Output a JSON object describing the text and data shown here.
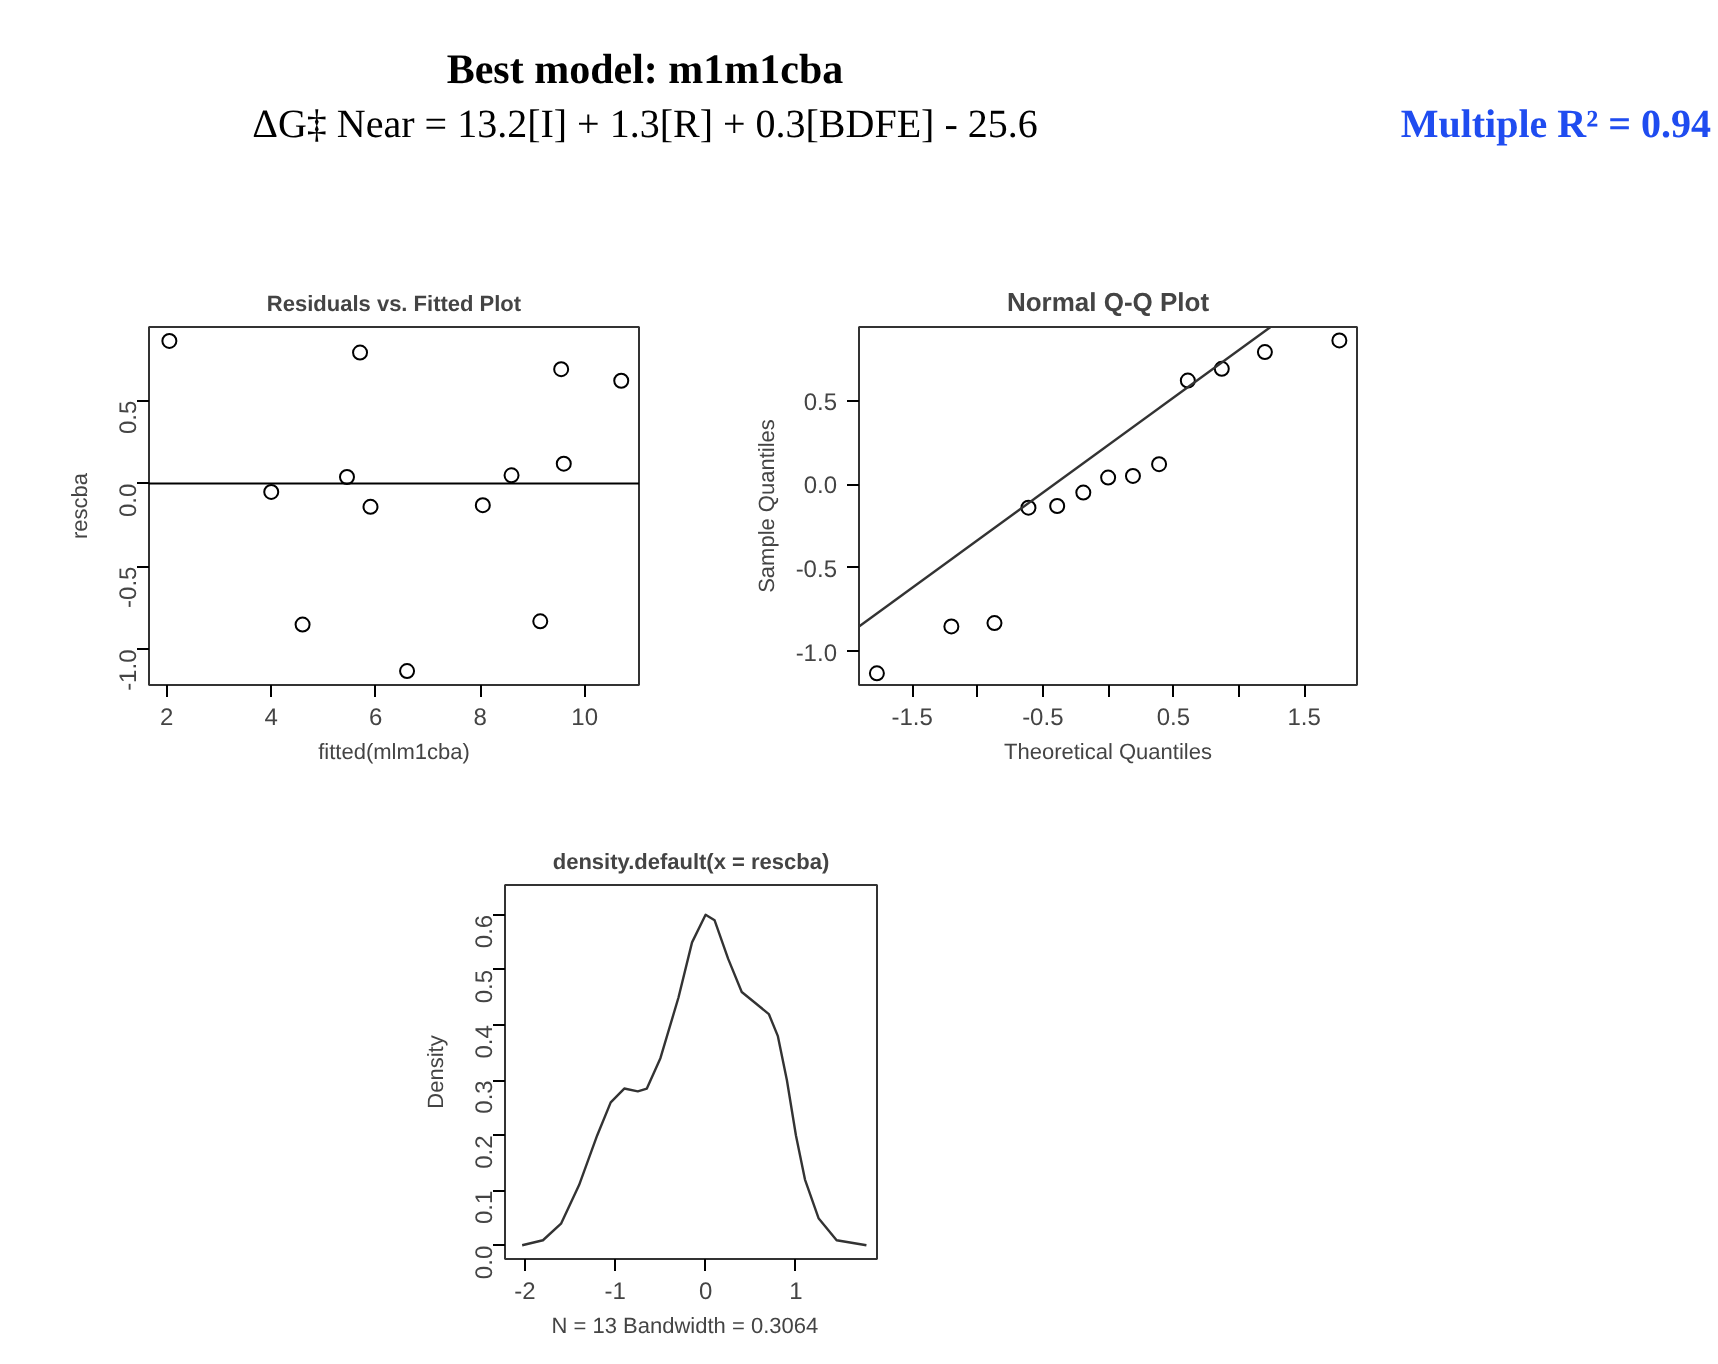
{
  "chart_data": [
    {
      "type": "other",
      "title": "Best model: m1m1cba",
      "subtitle": "ΔG‡ Near = 13.2[I] + 1.3[R] + 0.3[BDFE] - 25.6",
      "annotations": [
        "Multiple R² = 0.94"
      ]
    },
    {
      "type": "scatter",
      "title": "Residuals vs. Fitted Plot",
      "xlabel": "fitted(mlm1cba)",
      "ylabel": "rescba",
      "marker": "circle",
      "grid": false,
      "xlim": [
        1.66,
        11.04
      ],
      "ylim": [
        -1.214,
        0.944
      ],
      "xticks": [
        2,
        4,
        6,
        8,
        10
      ],
      "yticks": [
        {
          "value": -1,
          "label": "-1.0"
        },
        {
          "value": -0.5,
          "label": "-0.5"
        },
        {
          "value": 0,
          "label": "0.0"
        },
        {
          "value": 0.5,
          "label": "0.5"
        }
      ],
      "series": [
        {
          "color": "#000000",
          "x": [
            2.05,
            4.0,
            4.6,
            5.45,
            5.7,
            5.9,
            6.6,
            8.05,
            8.6,
            9.15,
            9.55,
            9.6,
            10.7
          ],
          "values": [
            0.86,
            -0.05,
            -0.85,
            0.04,
            0.79,
            -0.14,
            -1.13,
            -0.13,
            0.05,
            -0.83,
            0.69,
            0.12,
            0.62
          ]
        }
      ],
      "ref_lines": [
        {
          "axis": "y",
          "value": 0,
          "color": "#000000"
        }
      ]
    },
    {
      "type": "scatter",
      "title": "Normal Q-Q Plot",
      "xlabel": "Theoretical Quantiles",
      "ylabel": "Sample Quantiles",
      "grid": false,
      "xlim": [
        -1.907,
        1.905
      ],
      "ylim": [
        -1.2,
        0.94
      ],
      "xticks": [
        -1.5,
        {
          "value": -1,
          "label": null
        },
        -0.5,
        {
          "value": 0,
          "label": null
        },
        0.5,
        {
          "value": 1,
          "label": null
        },
        1.5
      ],
      "yticks": [
        {
          "value": -1,
          "label": "-1.0"
        },
        {
          "value": -0.5,
          "label": "-0.5"
        },
        {
          "value": 0,
          "label": "0.0"
        },
        {
          "value": 0.5,
          "label": "0.5"
        }
      ],
      "series": [
        {
          "color": "#000000",
          "marker": "circle",
          "x": [
            -1.77,
            -1.2,
            -0.87,
            -0.61,
            -0.39,
            -0.19,
            0,
            0.19,
            0.39,
            0.61,
            0.87,
            1.2,
            1.77
          ],
          "values": [
            -1.13,
            -0.85,
            -0.83,
            -0.14,
            -0.13,
            -0.05,
            0.04,
            0.05,
            0.12,
            0.62,
            0.69,
            0.79,
            0.86
          ]
        },
        {
          "type": "line",
          "marker": "none",
          "color": "#333333",
          "x": [
            -1.907,
            1.243
          ],
          "values": [
            -0.85,
            0.94
          ]
        }
      ]
    },
    {
      "type": "line",
      "title": "density.default(x = rescba)",
      "xlabel": "N = 13   Bandwidth = 0.3064",
      "ylabel": "Density",
      "grid": false,
      "marker": "none",
      "xlim": [
        -2.22,
        1.897
      ],
      "ylim": [
        -0.024,
        0.654
      ],
      "xticks": [
        -2,
        -1,
        0,
        1
      ],
      "yticks": [
        {
          "value": 0,
          "label": "0.0"
        },
        {
          "value": 0.1,
          "label": "0.1"
        },
        {
          "value": 0.2,
          "label": "0.2"
        },
        {
          "value": 0.3,
          "label": "0.3"
        },
        {
          "value": 0.4,
          "label": "0.4"
        },
        {
          "value": 0.5,
          "label": "0.5"
        },
        {
          "value": 0.6,
          "label": "0.6"
        }
      ],
      "series": [
        {
          "color": "#333333",
          "x": [
            -2.03,
            -1.8,
            -1.6,
            -1.4,
            -1.2,
            -1.05,
            -0.9,
            -0.75,
            -0.65,
            -0.5,
            -0.3,
            -0.15,
            0,
            0.1,
            0.25,
            0.4,
            0.55,
            0.7,
            0.8,
            0.9,
            1.0,
            1.1,
            1.25,
            1.45,
            1.78
          ],
          "values": [
            0.001,
            0.01,
            0.04,
            0.11,
            0.2,
            0.26,
            0.285,
            0.28,
            0.285,
            0.34,
            0.45,
            0.55,
            0.6,
            0.59,
            0.52,
            0.46,
            0.44,
            0.42,
            0.38,
            0.3,
            0.2,
            0.12,
            0.05,
            0.01,
            0.001
          ]
        }
      ]
    }
  ]
}
